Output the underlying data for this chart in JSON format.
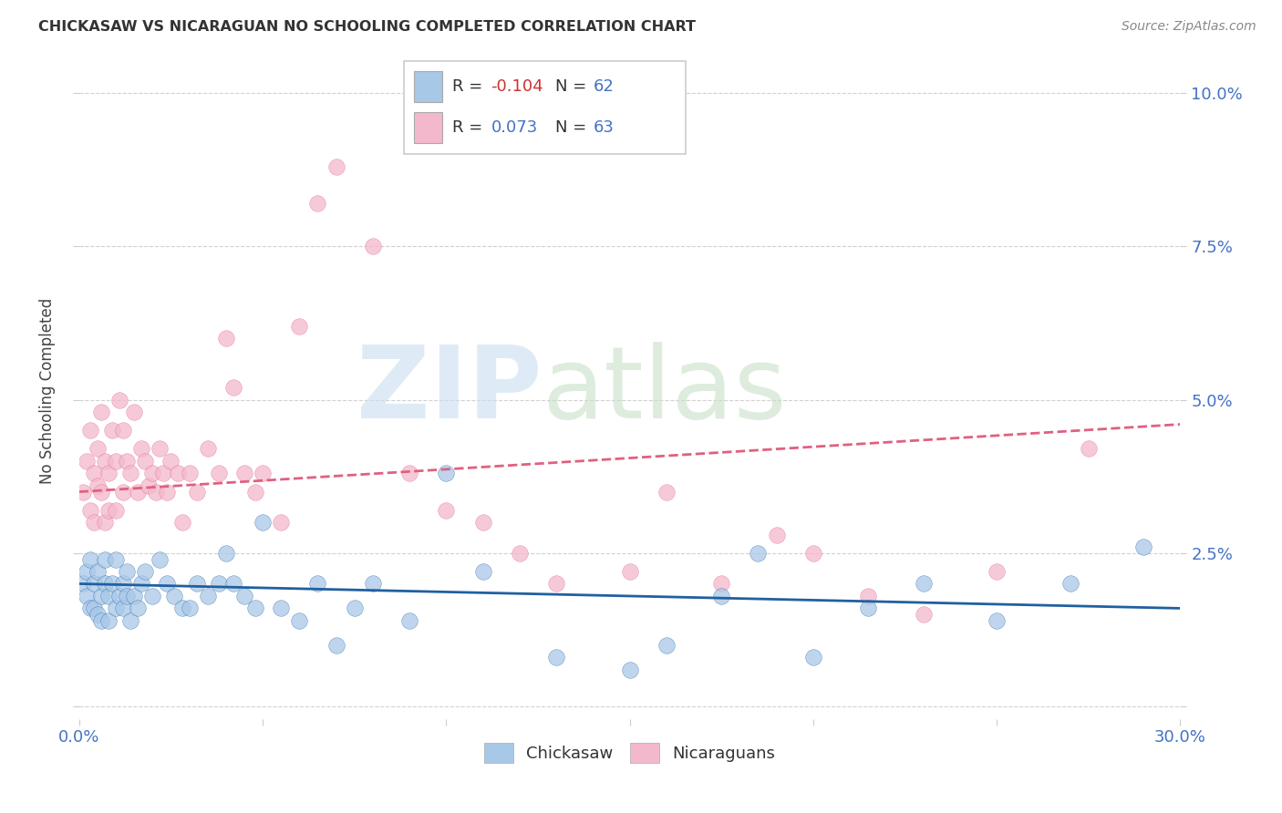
{
  "title": "CHICKASAW VS NICARAGUAN NO SCHOOLING COMPLETED CORRELATION CHART",
  "source": "Source: ZipAtlas.com",
  "ylabel": "No Schooling Completed",
  "xlim": [
    0.0,
    0.3
  ],
  "ylim": [
    -0.002,
    0.105
  ],
  "xticks": [
    0.0,
    0.05,
    0.1,
    0.15,
    0.2,
    0.25,
    0.3
  ],
  "xticklabels": [
    "0.0%",
    "",
    "",
    "",
    "",
    "",
    "30.0%"
  ],
  "yticks": [
    0.0,
    0.025,
    0.05,
    0.075,
    0.1
  ],
  "yticklabels": [
    "",
    "2.5%",
    "5.0%",
    "7.5%",
    "10.0%"
  ],
  "blue_color": "#a8c8e8",
  "pink_color": "#f4b8cc",
  "blue_line_color": "#2060a0",
  "pink_line_color": "#e06080",
  "R_blue": -0.104,
  "N_blue": 62,
  "R_pink": 0.073,
  "N_pink": 63,
  "blue_line_y0": 0.02,
  "blue_line_y1": 0.016,
  "pink_line_y0": 0.035,
  "pink_line_y1": 0.046,
  "blue_scatter_x": [
    0.001,
    0.002,
    0.002,
    0.003,
    0.003,
    0.004,
    0.004,
    0.005,
    0.005,
    0.006,
    0.006,
    0.007,
    0.007,
    0.008,
    0.008,
    0.009,
    0.01,
    0.01,
    0.011,
    0.012,
    0.012,
    0.013,
    0.013,
    0.014,
    0.015,
    0.016,
    0.017,
    0.018,
    0.02,
    0.022,
    0.024,
    0.026,
    0.028,
    0.03,
    0.032,
    0.035,
    0.038,
    0.04,
    0.042,
    0.045,
    0.048,
    0.05,
    0.055,
    0.06,
    0.065,
    0.07,
    0.075,
    0.08,
    0.09,
    0.1,
    0.11,
    0.13,
    0.15,
    0.16,
    0.175,
    0.185,
    0.2,
    0.215,
    0.23,
    0.25,
    0.27,
    0.29
  ],
  "blue_scatter_y": [
    0.02,
    0.018,
    0.022,
    0.016,
    0.024,
    0.016,
    0.02,
    0.015,
    0.022,
    0.014,
    0.018,
    0.02,
    0.024,
    0.018,
    0.014,
    0.02,
    0.016,
    0.024,
    0.018,
    0.02,
    0.016,
    0.022,
    0.018,
    0.014,
    0.018,
    0.016,
    0.02,
    0.022,
    0.018,
    0.024,
    0.02,
    0.018,
    0.016,
    0.016,
    0.02,
    0.018,
    0.02,
    0.025,
    0.02,
    0.018,
    0.016,
    0.03,
    0.016,
    0.014,
    0.02,
    0.01,
    0.016,
    0.02,
    0.014,
    0.038,
    0.022,
    0.008,
    0.006,
    0.01,
    0.018,
    0.025,
    0.008,
    0.016,
    0.02,
    0.014,
    0.02,
    0.026
  ],
  "pink_scatter_x": [
    0.001,
    0.002,
    0.003,
    0.003,
    0.004,
    0.004,
    0.005,
    0.005,
    0.006,
    0.006,
    0.007,
    0.007,
    0.008,
    0.008,
    0.009,
    0.01,
    0.01,
    0.011,
    0.012,
    0.012,
    0.013,
    0.014,
    0.015,
    0.016,
    0.017,
    0.018,
    0.019,
    0.02,
    0.021,
    0.022,
    0.023,
    0.024,
    0.025,
    0.027,
    0.028,
    0.03,
    0.032,
    0.035,
    0.038,
    0.04,
    0.042,
    0.045,
    0.048,
    0.05,
    0.055,
    0.06,
    0.065,
    0.07,
    0.08,
    0.09,
    0.1,
    0.11,
    0.12,
    0.13,
    0.15,
    0.16,
    0.175,
    0.19,
    0.2,
    0.215,
    0.23,
    0.25,
    0.275
  ],
  "pink_scatter_y": [
    0.035,
    0.04,
    0.032,
    0.045,
    0.038,
    0.03,
    0.042,
    0.036,
    0.048,
    0.035,
    0.03,
    0.04,
    0.032,
    0.038,
    0.045,
    0.032,
    0.04,
    0.05,
    0.035,
    0.045,
    0.04,
    0.038,
    0.048,
    0.035,
    0.042,
    0.04,
    0.036,
    0.038,
    0.035,
    0.042,
    0.038,
    0.035,
    0.04,
    0.038,
    0.03,
    0.038,
    0.035,
    0.042,
    0.038,
    0.06,
    0.052,
    0.038,
    0.035,
    0.038,
    0.03,
    0.062,
    0.082,
    0.088,
    0.075,
    0.038,
    0.032,
    0.03,
    0.025,
    0.02,
    0.022,
    0.035,
    0.02,
    0.028,
    0.025,
    0.018,
    0.015,
    0.022,
    0.042
  ]
}
